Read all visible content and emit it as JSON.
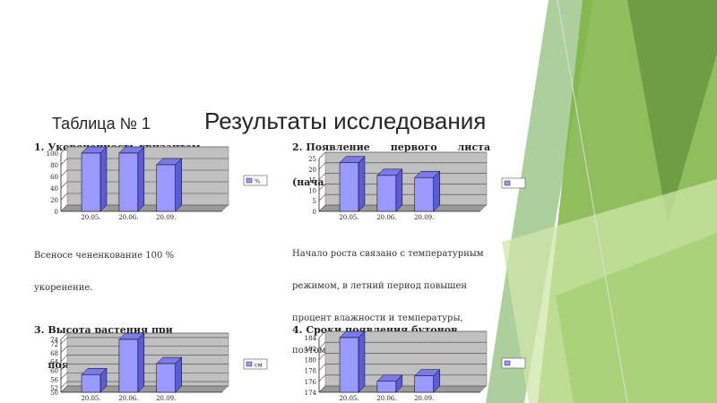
{
  "slide": {
    "table_label": "Таблица № 1",
    "title": "Результаты исследования"
  },
  "colors": {
    "bar_face": "#9999ff",
    "bar_side": "#5c5cd6",
    "plot_bg": "#c0c0c0",
    "accent_green": "#8bc34a",
    "dark_green": "#5f8f3a"
  },
  "panels": [
    {
      "title_lines": [
        "1. Укорененность хризантем"
      ],
      "note_lines": [
        "Всеносе чененкование 100 %",
        "укоренение."
      ],
      "legend_text": "%"
    },
    {
      "title_lines": [
        "2. Появление      первого      листа",
        "(начало роста)"
      ],
      "note_lines": [
        "Начало роста связано с температурным",
        "режимом, в летний период повышен",
        "процент влажности и температуры,",
        "поэтому рост ускоряется."
      ],
      "legend_text": ""
    },
    {
      "title_lines": [
        "3. Высота растения при",
        "    появлении первых бутонов"
      ],
      "note_lines": [],
      "legend_text": "см"
    },
    {
      "title_lines": [
        "4. Сроки появления бутонов"
      ],
      "note_lines": [],
      "legend_text": ""
    }
  ],
  "chart_data": [
    {
      "type": "bar",
      "title": "1. Укорененность хризантем",
      "categories": [
        "20.05.",
        "20.06.",
        "20.09."
      ],
      "values": [
        100,
        100,
        80
      ],
      "yticks": [
        "0",
        "20",
        "40",
        "60",
        "80",
        "100"
      ],
      "ylim": [
        0,
        100
      ],
      "grid": true,
      "legend": "right"
    },
    {
      "type": "bar",
      "title": "2. Появление первого листа (начало роста)",
      "categories": [
        "20.05.",
        "20.06.",
        "20.09."
      ],
      "values": [
        23,
        17,
        16
      ],
      "yticks": [
        "0",
        "5",
        "10",
        "15",
        "20",
        "25"
      ],
      "ylim": [
        0,
        25
      ],
      "grid": true,
      "legend": "right"
    },
    {
      "type": "bar",
      "title": "3. Высота растения при появлении первых бутонов",
      "categories": [
        "20.05.",
        "20.06.",
        "20.09."
      ],
      "values": [
        58,
        74,
        63
      ],
      "yticks": [
        "50",
        "52",
        "56",
        "60",
        "64",
        "68",
        "72",
        "74"
      ],
      "ylim": [
        50,
        74
      ],
      "grid": true,
      "legend": "right"
    },
    {
      "type": "bar",
      "title": "4. Сроки появления бутонов",
      "categories": [
        "20.05.",
        "20.06.",
        "20.09."
      ],
      "values": [
        184,
        176,
        177
      ],
      "yticks": [
        "174",
        "176",
        "178",
        "180",
        "182",
        "184"
      ],
      "ylim": [
        174,
        184
      ],
      "grid": true,
      "legend": "right"
    }
  ]
}
